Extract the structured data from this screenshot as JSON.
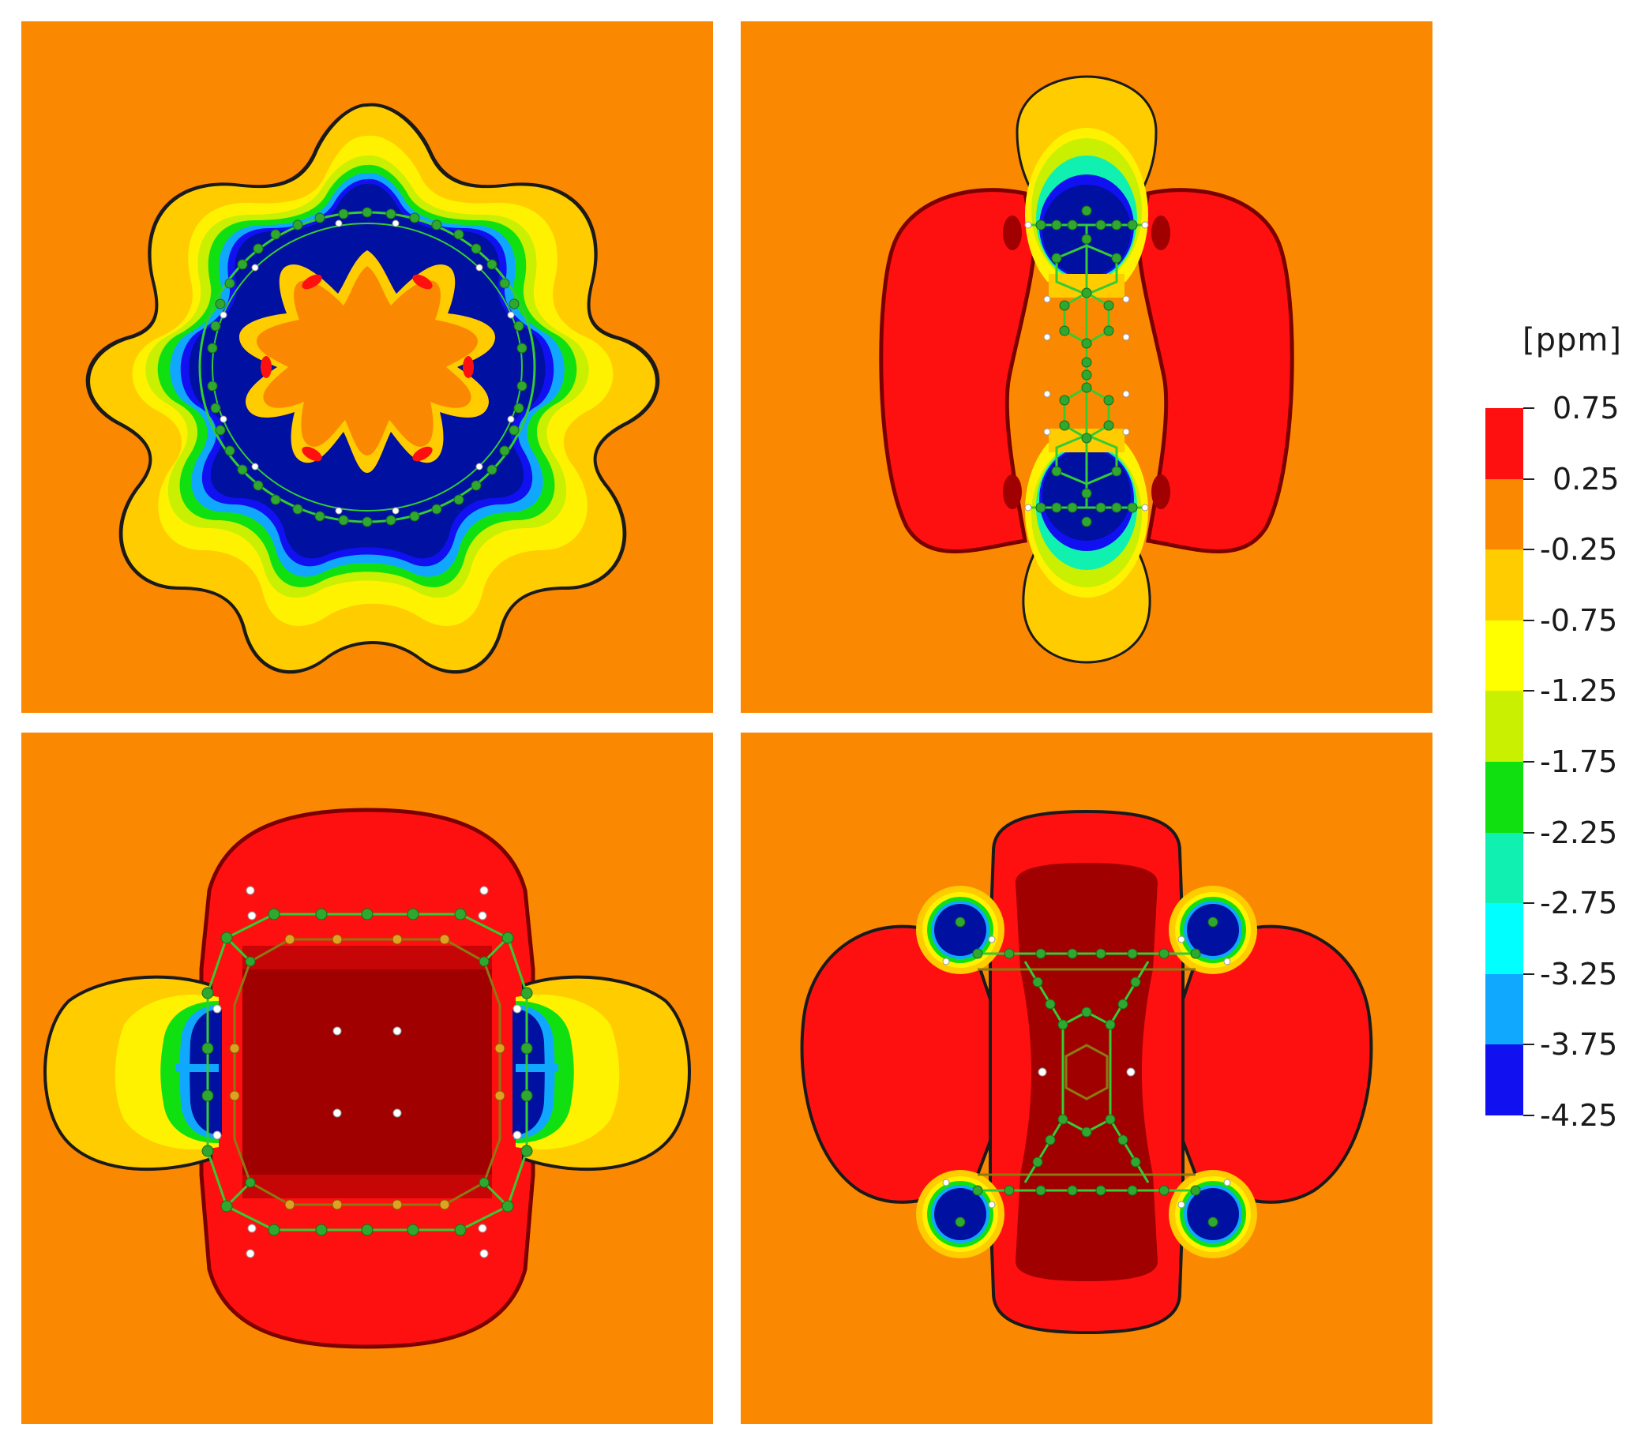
{
  "panels": [
    {
      "id": "ring-top-view"
    },
    {
      "id": "cage-side-view"
    },
    {
      "id": "cage-top-view"
    },
    {
      "id": "cage-oblique-view"
    }
  ],
  "colorbar": {
    "unit": "[ppm]",
    "labels": [
      "0.75",
      "0.25",
      "-0.25",
      "-0.75",
      "-1.25",
      "-1.75",
      "-2.25",
      "-2.75",
      "-3.25",
      "-3.75",
      "-4.25"
    ],
    "colors": [
      "#FF1010",
      "#FB8801",
      "#FFCC00",
      "#FFFF00",
      "#C8F000",
      "#10E010",
      "#10F0B0",
      "#00FFFF",
      "#10A8FF",
      "#1010F0"
    ]
  },
  "palette": {
    "background": "#FB8801",
    "deshielded_strong": "#A00000",
    "deshielded": "#FF1010",
    "shielded_strong": "#0010A0",
    "atom_carbon": "#2EA82E",
    "atom_hydrogen": "#FFFFFF",
    "bond": "#33CC33"
  }
}
